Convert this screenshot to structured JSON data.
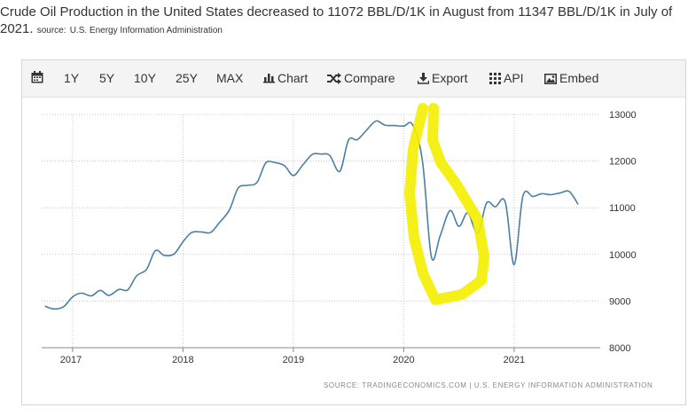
{
  "headline": {
    "text": "Crude Oil Production in the United States decreased to 11072 BBL/D/1K in August from 11347 BBL/D/1K in July of 2021.",
    "source_prefix": "source:",
    "source": "U.S. Energy Information Administration"
  },
  "toolbar": {
    "ranges": [
      "1Y",
      "5Y",
      "10Y",
      "25Y",
      "MAX"
    ],
    "chart_label": "Chart",
    "compare_label": "Compare",
    "export_label": "Export",
    "api_label": "API",
    "embed_label": "Embed",
    "icons": [
      "calendar-icon",
      "bar-chart-icon",
      "shuffle-icon",
      "download-icon",
      "grid-icon",
      "image-icon"
    ]
  },
  "footer": {
    "source_text": "SOURCE: TRADINGECONOMICS.COM | U.S. ENERGY INFORMATION ADMINISTRATION"
  },
  "colors": {
    "line": "#4b7fa3",
    "highlight": "#f5ee00",
    "grid": "#c8c8c8"
  },
  "chart_data": {
    "type": "line",
    "title": "Crude Oil Production in the United States",
    "xlabel": "",
    "ylabel": "BBL/D/1K",
    "ylim": [
      8000,
      13000
    ],
    "yticks": [
      "13000",
      "12000",
      "11000",
      "10000",
      "9000",
      "8000"
    ],
    "xticks": [
      "2017",
      "2018",
      "2019",
      "2020",
      "2021"
    ],
    "grid": true,
    "annotation": "yellow hand-drawn highlight around 2020 production drop",
    "series": [
      {
        "name": "Crude Oil Production",
        "x": [
          2016.75,
          2016.83,
          2016.92,
          2017.0,
          2017.08,
          2017.17,
          2017.25,
          2017.33,
          2017.42,
          2017.5,
          2017.58,
          2017.67,
          2017.75,
          2017.83,
          2017.92,
          2018.0,
          2018.08,
          2018.17,
          2018.25,
          2018.33,
          2018.42,
          2018.5,
          2018.58,
          2018.67,
          2018.75,
          2018.83,
          2018.92,
          2019.0,
          2019.08,
          2019.17,
          2019.25,
          2019.33,
          2019.42,
          2019.5,
          2019.58,
          2019.67,
          2019.75,
          2019.83,
          2019.92,
          2020.0,
          2020.08,
          2020.17,
          2020.25,
          2020.33,
          2020.42,
          2020.5,
          2020.58,
          2020.67,
          2020.75,
          2020.83,
          2020.92,
          2021.0,
          2021.08,
          2021.17,
          2021.25,
          2021.33,
          2021.42,
          2021.5,
          2021.58
        ],
        "values": [
          8890,
          8830,
          8880,
          9090,
          9170,
          9110,
          9230,
          9120,
          9250,
          9240,
          9540,
          9680,
          10080,
          9980,
          10010,
          10270,
          10470,
          10480,
          10470,
          10680,
          10950,
          11420,
          11480,
          11540,
          11960,
          11970,
          11900,
          11690,
          11900,
          12140,
          12150,
          12120,
          11780,
          12450,
          12460,
          12680,
          12860,
          12770,
          12760,
          12750,
          12780,
          12000,
          9950,
          10400,
          10940,
          10600,
          10890,
          10450,
          11100,
          11020,
          11120,
          9780,
          11250,
          11240,
          11300,
          11280,
          11320,
          11347,
          11072
        ]
      }
    ]
  }
}
